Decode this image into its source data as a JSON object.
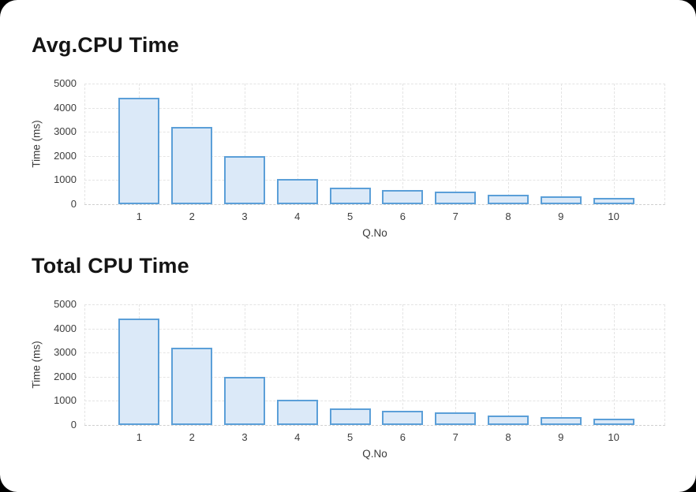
{
  "window": {
    "background": "#000000",
    "card_background": "#ffffff"
  },
  "styles": {
    "grid_color": "#e4e4e4",
    "zero_line_color": "#cfcfcf",
    "tick_label_color": "#3d3d3d",
    "axis_title_color": "#3a3a3a",
    "title_color": "#151515",
    "bar_fill": "#dbe9f8",
    "bar_stroke": "#5b9fd8"
  },
  "chart_data": [
    {
      "type": "bar",
      "title": "Avg.CPU Time",
      "xlabel": "Q.No",
      "ylabel": "Time (ms)",
      "categories": [
        "1",
        "2",
        "3",
        "4",
        "5",
        "6",
        "7",
        "8",
        "9",
        "10"
      ],
      "values": [
        4400,
        3200,
        2000,
        1030,
        700,
        590,
        530,
        380,
        330,
        270
      ],
      "ylim": [
        0,
        5000
      ],
      "yticks": [
        0,
        1000,
        2000,
        3000,
        4000,
        5000
      ],
      "grid": "dotted horizontal and vertical at bar centers",
      "legend": "none",
      "bar_fill": "#dbe9f8",
      "bar_stroke": "#5b9fd8"
    },
    {
      "type": "bar",
      "title": "Total CPU Time",
      "xlabel": "Q.No",
      "ylabel": "Time (ms)",
      "categories": [
        "1",
        "2",
        "3",
        "4",
        "5",
        "6",
        "7",
        "8",
        "9",
        "10"
      ],
      "values": [
        4400,
        3200,
        2000,
        1030,
        700,
        590,
        530,
        380,
        330,
        270
      ],
      "ylim": [
        0,
        5000
      ],
      "yticks": [
        0,
        1000,
        2000,
        3000,
        4000,
        5000
      ],
      "grid": "dotted horizontal and vertical at bar centers",
      "legend": "none",
      "bar_fill": "#dbe9f8",
      "bar_stroke": "#5b9fd8"
    }
  ]
}
